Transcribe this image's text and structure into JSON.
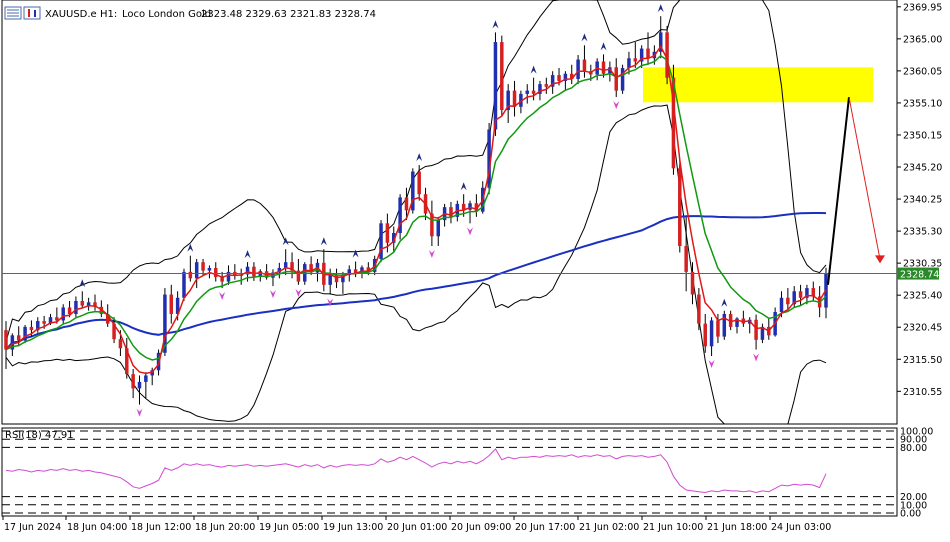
{
  "header": {
    "symbol": "XAUUSD.e",
    "timeframe": "H1:",
    "description": "Loco London Gold",
    "ohlc": "2323.48 2329.63 2321.83 2328.74"
  },
  "colors": {
    "bull_body": "#1f2fb0",
    "bear_body": "#d42020",
    "wick": "#000000",
    "ma_fast": "#e01818",
    "ma_slow": "#119911",
    "ma_long": "#1a30c0",
    "bands": "#000000",
    "price_line": "#2a8a2a",
    "zone": "#ffff00",
    "rsi": "#d24ad2",
    "arrow_up": "#1c2a80",
    "arrow_down": "#d24ad2",
    "projection_black": "#000000",
    "projection_red": "#e02020"
  },
  "chart_data": [
    {
      "type": "candlestick",
      "title": "",
      "price_label": "2328.74",
      "ylim": [
        2305.5,
        2371.0
      ],
      "y_ticks": [
        "2369.95",
        "2365.00",
        "2360.05",
        "2355.10",
        "2350.15",
        "2345.20",
        "2340.25",
        "2335.30",
        "2330.35",
        "2325.40",
        "2320.45",
        "2315.50",
        "2310.55"
      ],
      "x_ticks": [
        "17 Jun 2024",
        "18 Jun 04:00",
        "18 Jun 12:00",
        "18 Jun 20:00",
        "19 Jun 05:00",
        "19 Jun 13:00",
        "20 Jun 01:00",
        "20 Jun 09:00",
        "20 Jun 17:00",
        "21 Jun 02:00",
        "21 Jun 10:00",
        "21 Jun 18:00",
        "24 Jun 03:00"
      ],
      "supply_zone": [
        2355.2,
        2360.6
      ],
      "projection": {
        "start": 2327.0,
        "peak": 2356.0,
        "end": 2330.0
      },
      "candles": [
        [
          2320.0,
          2321.4,
          2314.0,
          2317.0
        ],
        [
          2317.0,
          2319.5,
          2316.0,
          2319.2
        ],
        [
          2319.2,
          2320.6,
          2317.5,
          2318.4
        ],
        [
          2318.4,
          2320.8,
          2318.0,
          2320.5
        ],
        [
          2320.5,
          2321.5,
          2319.0,
          2320.0
        ],
        [
          2320.0,
          2322.0,
          2319.6,
          2321.4
        ],
        [
          2321.4,
          2322.2,
          2320.2,
          2321.0
        ],
        [
          2321.0,
          2322.5,
          2320.8,
          2322.0
        ],
        [
          2322.0,
          2323.5,
          2321.0,
          2321.5
        ],
        [
          2321.5,
          2324.0,
          2321.0,
          2323.5
        ],
        [
          2323.5,
          2324.5,
          2322.0,
          2322.5
        ],
        [
          2322.5,
          2325.2,
          2322.0,
          2324.5
        ],
        [
          2324.5,
          2326.0,
          2323.4,
          2323.8
        ],
        [
          2323.8,
          2325.0,
          2323.0,
          2324.3
        ],
        [
          2324.3,
          2325.5,
          2323.0,
          2323.6
        ],
        [
          2323.6,
          2324.6,
          2322.0,
          2322.5
        ],
        [
          2322.5,
          2324.0,
          2320.5,
          2321.0
        ],
        [
          2321.0,
          2322.0,
          2318.0,
          2318.6
        ],
        [
          2318.6,
          2320.0,
          2316.0,
          2317.2
        ],
        [
          2317.2,
          2318.8,
          2312.5,
          2313.2
        ],
        [
          2313.2,
          2314.0,
          2309.5,
          2311.0
        ],
        [
          2311.0,
          2313.0,
          2308.5,
          2312.0
        ],
        [
          2312.0,
          2313.5,
          2309.5,
          2313.0
        ],
        [
          2313.0,
          2314.2,
          2311.5,
          2313.8
        ],
        [
          2313.8,
          2317.0,
          2313.0,
          2316.5
        ],
        [
          2316.5,
          2326.5,
          2316.0,
          2325.5
        ],
        [
          2325.5,
          2327.0,
          2321.0,
          2322.5
        ],
        [
          2322.5,
          2326.0,
          2321.5,
          2325.0
        ],
        [
          2325.0,
          2329.5,
          2324.5,
          2329.0
        ],
        [
          2329.0,
          2331.5,
          2327.5,
          2328.0
        ],
        [
          2328.0,
          2331.0,
          2326.5,
          2330.5
        ],
        [
          2330.5,
          2331.0,
          2328.5,
          2329.2
        ],
        [
          2329.2,
          2330.0,
          2328.0,
          2329.6
        ],
        [
          2329.6,
          2330.5,
          2327.5,
          2328.2
        ],
        [
          2328.2,
          2329.0,
          2326.5,
          2327.5
        ],
        [
          2327.5,
          2330.0,
          2327.0,
          2329.0
        ],
        [
          2329.0,
          2330.2,
          2327.8,
          2328.4
        ],
        [
          2328.4,
          2329.5,
          2327.0,
          2328.6
        ],
        [
          2328.6,
          2330.5,
          2327.5,
          2329.8
        ],
        [
          2329.8,
          2330.5,
          2327.6,
          2328.3
        ],
        [
          2328.3,
          2329.4,
          2327.5,
          2329.1
        ],
        [
          2329.1,
          2330.2,
          2327.8,
          2328.1
        ],
        [
          2328.1,
          2329.4,
          2326.8,
          2328.9
        ],
        [
          2328.9,
          2330.4,
          2328.0,
          2329.6
        ],
        [
          2329.6,
          2332.5,
          2328.5,
          2330.5
        ],
        [
          2330.5,
          2332.0,
          2328.0,
          2329.2
        ],
        [
          2329.2,
          2331.0,
          2327.0,
          2327.5
        ],
        [
          2327.5,
          2330.5,
          2327.0,
          2330.2
        ],
        [
          2330.2,
          2331.4,
          2328.5,
          2328.9
        ],
        [
          2328.9,
          2331.0,
          2327.5,
          2330.4
        ],
        [
          2330.4,
          2332.5,
          2326.0,
          2327.0
        ],
        [
          2327.0,
          2329.5,
          2325.5,
          2328.6
        ],
        [
          2328.6,
          2329.5,
          2326.5,
          2327.4
        ],
        [
          2327.4,
          2329.0,
          2325.6,
          2328.5
        ],
        [
          2328.5,
          2330.0,
          2327.5,
          2329.4
        ],
        [
          2329.4,
          2330.6,
          2328.2,
          2328.8
        ],
        [
          2328.8,
          2330.0,
          2328.0,
          2329.7
        ],
        [
          2329.7,
          2330.5,
          2328.5,
          2329.0
        ],
        [
          2329.0,
          2331.5,
          2328.5,
          2331.0
        ],
        [
          2331.0,
          2337.0,
          2330.5,
          2336.5
        ],
        [
          2336.5,
          2338.0,
          2332.0,
          2333.5
        ],
        [
          2333.5,
          2336.0,
          2332.0,
          2335.0
        ],
        [
          2335.0,
          2341.0,
          2334.0,
          2340.5
        ],
        [
          2340.5,
          2342.0,
          2337.0,
          2338.5
        ],
        [
          2338.5,
          2345.0,
          2338.0,
          2344.5
        ],
        [
          2344.5,
          2345.5,
          2340.0,
          2341.0
        ],
        [
          2341.0,
          2342.0,
          2337.0,
          2338.0
        ],
        [
          2338.0,
          2340.0,
          2333.0,
          2334.5
        ],
        [
          2334.5,
          2337.5,
          2333.0,
          2337.0
        ],
        [
          2337.0,
          2339.5,
          2336.0,
          2339.0
        ],
        [
          2339.0,
          2339.8,
          2336.5,
          2337.5
        ],
        [
          2337.5,
          2340.0,
          2336.8,
          2339.5
        ],
        [
          2339.5,
          2341.0,
          2337.5,
          2338.6
        ],
        [
          2338.6,
          2340.0,
          2336.5,
          2339.6
        ],
        [
          2339.6,
          2341.0,
          2337.5,
          2338.3
        ],
        [
          2338.3,
          2343.0,
          2338.0,
          2342.0
        ],
        [
          2342.0,
          2352.0,
          2341.0,
          2351.0
        ],
        [
          2351.0,
          2366.0,
          2350.0,
          2364.5
        ],
        [
          2364.5,
          2365.5,
          2353.0,
          2354.0
        ],
        [
          2354.0,
          2358.0,
          2352.0,
          2357.0
        ],
        [
          2357.0,
          2358.5,
          2353.0,
          2354.5
        ],
        [
          2354.5,
          2357.0,
          2353.5,
          2356.5
        ],
        [
          2356.5,
          2358.0,
          2355.0,
          2357.0
        ],
        [
          2357.0,
          2359.0,
          2355.5,
          2356.5
        ],
        [
          2356.5,
          2358.5,
          2355.5,
          2358.0
        ],
        [
          2358.0,
          2359.0,
          2356.5,
          2357.6
        ],
        [
          2357.6,
          2360.0,
          2356.5,
          2359.4
        ],
        [
          2359.4,
          2360.5,
          2357.8,
          2358.5
        ],
        [
          2358.5,
          2360.0,
          2357.0,
          2359.6
        ],
        [
          2359.6,
          2361.0,
          2358.0,
          2358.8
        ],
        [
          2358.8,
          2362.5,
          2358.0,
          2361.8
        ],
        [
          2361.8,
          2364.0,
          2359.0,
          2360.0
        ],
        [
          2360.0,
          2361.0,
          2358.5,
          2359.5
        ],
        [
          2359.5,
          2362.0,
          2358.6,
          2361.5
        ],
        [
          2361.5,
          2362.6,
          2359.0,
          2359.6
        ],
        [
          2359.6,
          2361.5,
          2358.4,
          2360.6
        ],
        [
          2360.6,
          2362.0,
          2356.0,
          2357.0
        ],
        [
          2357.0,
          2361.0,
          2356.5,
          2360.5
        ],
        [
          2360.5,
          2363.0,
          2359.5,
          2362.0
        ],
        [
          2362.0,
          2364.5,
          2360.5,
          2361.5
        ],
        [
          2361.5,
          2364.0,
          2360.5,
          2363.5
        ],
        [
          2363.5,
          2366.0,
          2361.0,
          2362.0
        ],
        [
          2362.0,
          2364.0,
          2361.0,
          2363.0
        ],
        [
          2363.0,
          2368.5,
          2362.0,
          2366.0
        ],
        [
          2366.0,
          2367.0,
          2358.0,
          2359.0
        ],
        [
          2359.0,
          2361.0,
          2344.0,
          2345.0
        ],
        [
          2345.0,
          2346.5,
          2332.0,
          2333.0
        ],
        [
          2333.0,
          2337.5,
          2326.0,
          2329.0
        ],
        [
          2329.0,
          2330.5,
          2324.0,
          2325.5
        ],
        [
          2325.5,
          2326.5,
          2320.0,
          2321.0
        ],
        [
          2321.0,
          2322.5,
          2316.5,
          2317.5
        ],
        [
          2317.5,
          2322.0,
          2316.0,
          2321.5
        ],
        [
          2321.5,
          2322.5,
          2318.0,
          2319.0
        ],
        [
          2319.0,
          2323.0,
          2318.5,
          2322.5
        ],
        [
          2322.5,
          2323.0,
          2320.0,
          2320.5
        ],
        [
          2320.5,
          2322.0,
          2319.5,
          2321.8
        ],
        [
          2321.8,
          2323.0,
          2320.5,
          2321.0
        ],
        [
          2321.0,
          2322.0,
          2319.5,
          2321.6
        ],
        [
          2321.6,
          2322.4,
          2317.0,
          2318.5
        ],
        [
          2318.5,
          2321.0,
          2318.0,
          2320.5
        ],
        [
          2320.5,
          2321.8,
          2318.5,
          2319.2
        ],
        [
          2319.2,
          2323.5,
          2319.0,
          2322.8
        ],
        [
          2322.8,
          2326.0,
          2322.0,
          2325.0
        ],
        [
          2325.0,
          2326.5,
          2323.0,
          2324.0
        ],
        [
          2324.0,
          2326.8,
          2323.5,
          2326.0
        ],
        [
          2326.0,
          2327.0,
          2323.8,
          2325.0
        ],
        [
          2325.0,
          2327.0,
          2324.0,
          2326.5
        ],
        [
          2326.5,
          2327.5,
          2324.5,
          2325.2
        ],
        [
          2325.2,
          2326.8,
          2322.0,
          2323.5
        ],
        [
          2323.48,
          2329.63,
          2321.83,
          2328.74
        ]
      ]
    },
    {
      "type": "line",
      "title": "RSI(18) 47.91",
      "ylim": [
        0,
        100
      ],
      "y_ticks": [
        "100.00",
        "90.00",
        "80.00",
        "20.00",
        "10.00",
        "0.00"
      ],
      "levels": [
        100,
        90,
        80,
        20,
        10,
        0
      ],
      "values": [
        52,
        51,
        53,
        52,
        50,
        52,
        51,
        53,
        52,
        54,
        52,
        53,
        51,
        52,
        50,
        49,
        47,
        45,
        43,
        38,
        32,
        30,
        33,
        36,
        40,
        55,
        52,
        55,
        60,
        58,
        60,
        58,
        59,
        57,
        56,
        58,
        57,
        58,
        59,
        57,
        58,
        57,
        58,
        59,
        60,
        58,
        56,
        59,
        57,
        59,
        55,
        58,
        56,
        58,
        59,
        58,
        59,
        58,
        60,
        66,
        62,
        64,
        68,
        65,
        69,
        65,
        61,
        56,
        60,
        62,
        60,
        63,
        61,
        63,
        60,
        64,
        70,
        78,
        65,
        68,
        66,
        68,
        68,
        69,
        68,
        70,
        69,
        70,
        69,
        71,
        68,
        70,
        69,
        71,
        69,
        70,
        66,
        69,
        70,
        69,
        70,
        68,
        69,
        71,
        62,
        45,
        34,
        28,
        27,
        26,
        25,
        27,
        26,
        28,
        27,
        27,
        26,
        27,
        25,
        27,
        26,
        30,
        34,
        33,
        35,
        34,
        35,
        34,
        31,
        47.91
      ]
    }
  ]
}
